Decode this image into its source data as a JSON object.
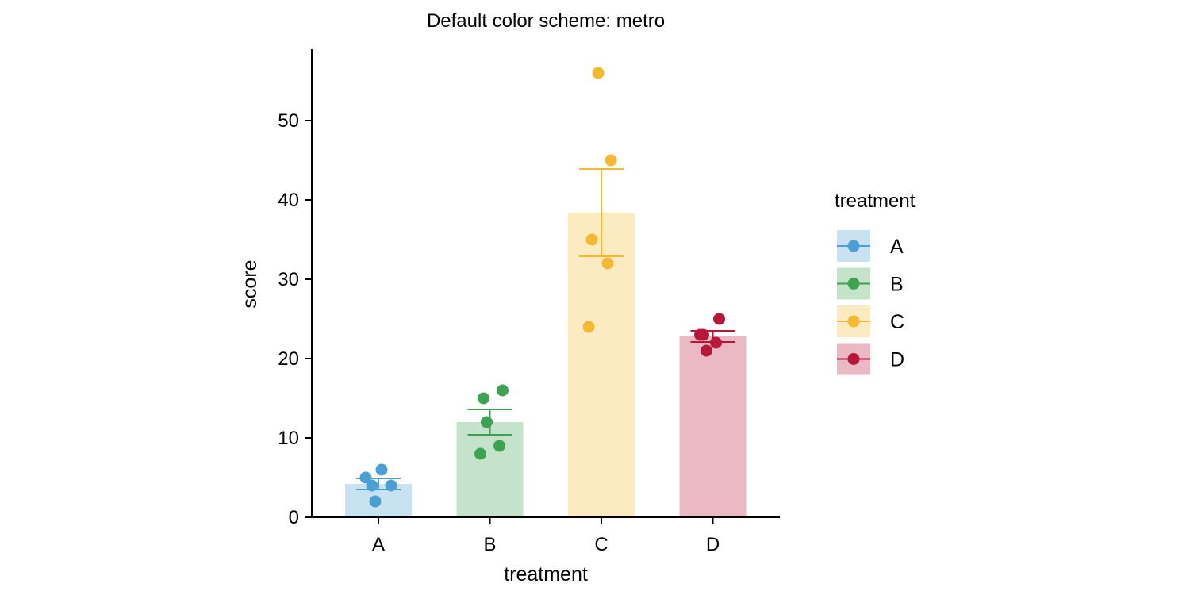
{
  "chart_data": {
    "type": "bar",
    "title": "Default color scheme: metro",
    "xlabel": "treatment",
    "ylabel": "score",
    "ylim": [
      0,
      59
    ],
    "yticks": [
      0,
      10,
      20,
      30,
      40,
      50
    ],
    "grid": false,
    "legend": {
      "title": "treatment",
      "position": "right"
    },
    "categories": [
      "A",
      "B",
      "C",
      "D"
    ],
    "colors": [
      "#4A9FD5",
      "#3DA351",
      "#F5B931",
      "#B8173A"
    ],
    "bar_values": [
      4.2,
      12.0,
      38.4,
      22.8
    ],
    "error_bars": [
      {
        "low": 3.5,
        "high": 4.9
      },
      {
        "low": 10.4,
        "high": 13.6
      },
      {
        "low": 32.9,
        "high": 43.9
      },
      {
        "low": 22.1,
        "high": 23.5
      }
    ],
    "points": [
      [
        5,
        6,
        4,
        4,
        2
      ],
      [
        15,
        16,
        12,
        9,
        8
      ],
      [
        56,
        45,
        35,
        32,
        24
      ],
      [
        23,
        25,
        23,
        22,
        21
      ]
    ]
  }
}
